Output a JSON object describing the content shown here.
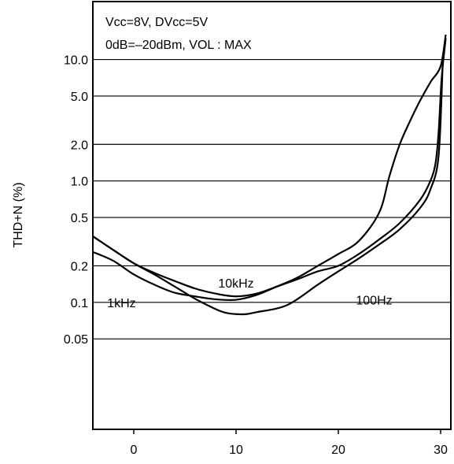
{
  "chart_data": {
    "type": "line",
    "title": "",
    "xlabel": "",
    "ylabel": "THD+N (%)",
    "xlim": [
      -4,
      31
    ],
    "ylim": [
      0.009,
      30
    ],
    "y_scale": "log",
    "grid": "horizontal",
    "x_ticks": [
      0,
      10,
      20,
      30
    ],
    "x_tick_labels": [
      "0",
      "10",
      "20",
      "30"
    ],
    "y_ticks": [
      0.05,
      0.1,
      0.2,
      0.5,
      1.0,
      2.0,
      5.0,
      10.0
    ],
    "y_tick_labels": [
      "0.05",
      "0.1",
      "0.2",
      "0.5",
      "1.0",
      "2.0",
      "5.0",
      "10.0"
    ],
    "annotations": [
      "Vcc=8V, DVcc=5V",
      "0dB=–20dBm, VOL : MAX"
    ],
    "curve_labels": [
      {
        "text": "1kHz",
        "x": -1.2,
        "y": 0.1
      },
      {
        "text": "10kHz",
        "x": 10,
        "y": 0.145
      },
      {
        "text": "100Hz",
        "x": 23.5,
        "y": 0.105
      }
    ],
    "series": [
      {
        "name": "1kHz",
        "x": [
          -4,
          -2,
          0,
          2,
          4,
          6,
          8,
          10,
          12,
          14,
          16,
          18,
          20,
          22,
          24,
          25,
          26,
          27,
          28,
          29,
          30,
          30.5
        ],
        "y": [
          0.26,
          0.22,
          0.17,
          0.14,
          0.12,
          0.112,
          0.106,
          0.105,
          0.115,
          0.135,
          0.16,
          0.2,
          0.25,
          0.32,
          0.55,
          1.1,
          2.0,
          3.1,
          4.6,
          6.5,
          8.8,
          16.0
        ]
      },
      {
        "name": "10kHz",
        "x": [
          -4,
          -2,
          0,
          2,
          4,
          6,
          8,
          10,
          12,
          14,
          16,
          18,
          20,
          22,
          24,
          26,
          28,
          29,
          29.5,
          29.8,
          30.1,
          30.5
        ],
        "y": [
          0.35,
          0.27,
          0.21,
          0.175,
          0.15,
          0.13,
          0.118,
          0.112,
          0.118,
          0.135,
          0.155,
          0.18,
          0.2,
          0.25,
          0.33,
          0.45,
          0.7,
          1.0,
          1.4,
          2.5,
          7.0,
          15.0
        ]
      },
      {
        "name": "100Hz",
        "x": [
          -4,
          -2,
          0,
          2,
          4,
          6,
          8,
          9,
          10,
          11,
          12,
          15,
          18,
          20,
          22,
          24,
          26,
          28,
          29,
          29.8,
          30.2
        ],
        "y": [
          0.35,
          0.27,
          0.21,
          0.17,
          0.135,
          0.107,
          0.088,
          0.082,
          0.08,
          0.08,
          0.083,
          0.095,
          0.14,
          0.18,
          0.23,
          0.3,
          0.4,
          0.6,
          0.85,
          1.6,
          9.0
        ]
      }
    ]
  }
}
